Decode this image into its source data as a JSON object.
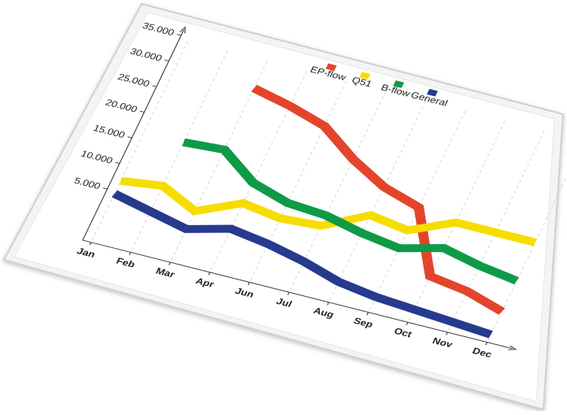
{
  "chart_data": {
    "type": "line",
    "categories": [
      "Jan",
      "Feb",
      "Mar",
      "Apr",
      "Jun",
      "Jul",
      "Aug",
      "Sep",
      "Oct",
      "Nov",
      "Dec"
    ],
    "series": [
      {
        "name": "EP-flow",
        "color": "#e2452a",
        "values": [
          null,
          null,
          29000,
          27500,
          25500,
          21000,
          17500,
          15500,
          4000,
          3000,
          1000
        ]
      },
      {
        "name": "Q51",
        "color": "#f6dd00",
        "values": [
          7000,
          8000,
          5000,
          8500,
          7500,
          8000,
          12000,
          11000,
          14500,
          14500,
          14500
        ]
      },
      {
        "name": "B-flow",
        "color": "#0f9a48",
        "values": [
          null,
          16500,
          17000,
          12500,
          10500,
          10000,
          8500,
          7500,
          9500,
          8000,
          7000
        ]
      },
      {
        "name": "General",
        "color": "#263a8e",
        "values": [
          4500,
          3000,
          1500,
          3500,
          2500,
          1000,
          -1000,
          -2000,
          -2500,
          -3000,
          -3500
        ]
      }
    ],
    "ylim": [
      -5000,
      35000
    ],
    "yticks": [
      {
        "value": 5000,
        "label": "5.000"
      },
      {
        "value": 10000,
        "label": "10.000"
      },
      {
        "value": 15000,
        "label": "15.000"
      },
      {
        "value": 20000,
        "label": "20.000"
      },
      {
        "value": 25000,
        "label": "25.000"
      },
      {
        "value": 30000,
        "label": "30.000"
      },
      {
        "value": 35000,
        "label": "35.000"
      }
    ]
  }
}
